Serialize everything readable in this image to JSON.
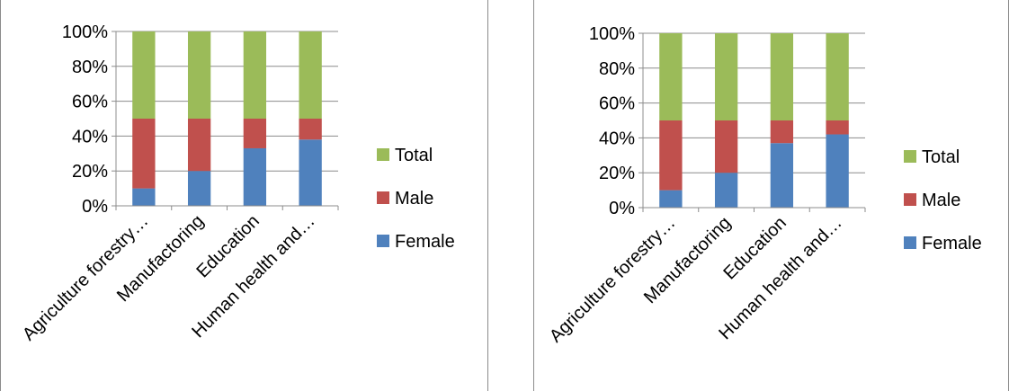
{
  "chart_data": [
    {
      "type": "bar",
      "stacked": true,
      "categories": [
        "Agriculture forestry…",
        "Manufactoring",
        "Education",
        "Human health and…"
      ],
      "series": [
        {
          "name": "Female",
          "values": [
            10,
            20,
            33,
            38
          ]
        },
        {
          "name": "Male",
          "values": [
            40,
            30,
            17,
            12
          ]
        },
        {
          "name": "Total",
          "values": [
            50,
            50,
            50,
            50
          ]
        }
      ],
      "ylim": [
        0,
        100
      ],
      "yticks": [
        "0%",
        "20%",
        "40%",
        "60%",
        "80%",
        "100%"
      ],
      "legend": "right",
      "grid": true
    },
    {
      "type": "bar",
      "stacked": true,
      "categories": [
        "Agriculture forestry…",
        "Manufactoring",
        "Education",
        "Human health and…"
      ],
      "series": [
        {
          "name": "Female",
          "values": [
            10,
            20,
            37,
            42
          ]
        },
        {
          "name": "Male",
          "values": [
            40,
            30,
            13,
            8
          ]
        },
        {
          "name": "Total",
          "values": [
            50,
            50,
            50,
            50
          ]
        }
      ],
      "ylim": [
        0,
        100
      ],
      "yticks": [
        "0%",
        "20%",
        "40%",
        "60%",
        "80%",
        "100%"
      ],
      "legend": "right",
      "grid": true
    }
  ],
  "colors": {
    "Female": "#4f81bd",
    "Male": "#c0504d",
    "Total": "#9bbb59"
  }
}
